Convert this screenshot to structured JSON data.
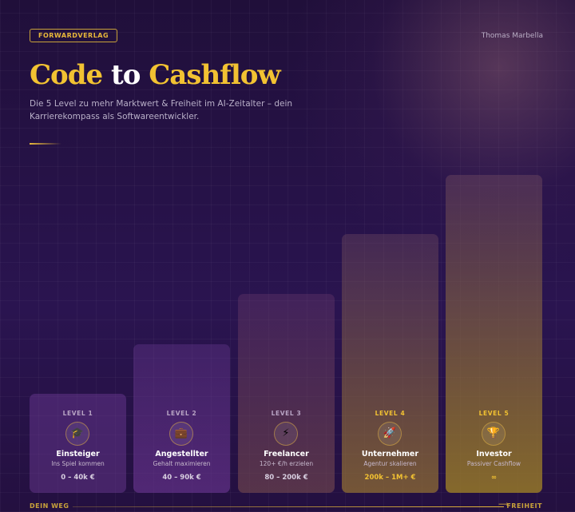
{
  "header": {
    "publisher": "FORWARDVERLAG",
    "author": "Thomas Marbella"
  },
  "title": {
    "part1": "Code",
    "part2": "to",
    "part3": "Cashflow"
  },
  "subtitle": [
    "Die 5 Level zu mehr Marktwert & Freiheit im AI-Zeitalter – dein",
    "Karrierekompass als Softwareentwickler."
  ],
  "levels": [
    {
      "level": "LEVEL 1",
      "icon": "🎓",
      "name": "Einsteiger",
      "tagline": "Ins Spiel kommen",
      "range": "0 – 40k €"
    },
    {
      "level": "LEVEL 2",
      "icon": "💼",
      "name": "Angestellter",
      "tagline": "Gehalt maximieren",
      "range": "40 – 90k €"
    },
    {
      "level": "LEVEL 3",
      "icon": "⚡",
      "name": "Freelancer",
      "tagline": "120+ €/h erzielen",
      "range": "80 – 200k €"
    },
    {
      "level": "LEVEL 4",
      "icon": "🚀",
      "name": "Unternehmer",
      "tagline": "Agentur skalieren",
      "range": "200k – 1M+ €"
    },
    {
      "level": "LEVEL 5",
      "icon": "🏆",
      "name": "Investor",
      "tagline": "Passiver Cashflow",
      "range": "∞"
    }
  ],
  "footer": {
    "start": "DEIN WEG",
    "end": "FREIHEIT"
  }
}
